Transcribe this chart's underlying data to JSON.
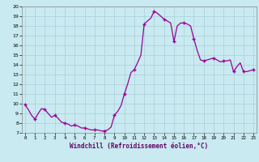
{
  "title": "",
  "xlabel": "Windchill (Refroidissement éolien,°C)",
  "ylabel": "",
  "bg_color": "#c8eaf0",
  "grid_color": "#b0d4dc",
  "line_color": "#990099",
  "marker_color": "#990099",
  "ylim": [
    7,
    20
  ],
  "xlim": [
    -0.3,
    23.3
  ],
  "yticks": [
    7,
    8,
    9,
    10,
    11,
    12,
    13,
    14,
    15,
    16,
    17,
    18,
    19,
    20
  ],
  "xticks": [
    0,
    1,
    2,
    3,
    4,
    5,
    6,
    7,
    8,
    9,
    10,
    11,
    12,
    13,
    14,
    15,
    16,
    17,
    18,
    19,
    20,
    21,
    22,
    23
  ],
  "x": [
    0,
    0.33,
    0.67,
    1,
    1.33,
    1.67,
    2,
    2.33,
    2.67,
    3,
    3.33,
    3.67,
    4,
    4.33,
    4.67,
    5,
    5.33,
    5.67,
    6,
    6.33,
    6.67,
    7,
    7.33,
    7.67,
    8,
    8.33,
    8.67,
    9,
    9.33,
    9.67,
    10,
    10.33,
    10.67,
    11,
    11.33,
    11.67,
    12,
    12.33,
    12.67,
    13,
    13.33,
    13.67,
    14,
    14.33,
    14.67,
    15,
    15.33,
    15.67,
    16,
    16.33,
    16.67,
    17,
    17.33,
    17.67,
    18,
    18.33,
    18.67,
    19,
    19.33,
    19.67,
    20,
    20.33,
    20.67,
    21,
    21.33,
    21.67,
    22,
    22.33,
    22.67,
    23
  ],
  "y": [
    9.9,
    9.4,
    8.8,
    8.4,
    9.0,
    9.5,
    9.4,
    9.0,
    8.6,
    8.8,
    8.5,
    8.1,
    8.0,
    7.9,
    7.7,
    7.8,
    7.7,
    7.5,
    7.5,
    7.4,
    7.3,
    7.3,
    7.3,
    7.2,
    7.2,
    7.3,
    7.6,
    8.8,
    9.2,
    9.8,
    11.0,
    12.0,
    13.2,
    13.5,
    14.2,
    15.0,
    18.2,
    18.5,
    18.8,
    19.5,
    19.3,
    19.0,
    18.7,
    18.5,
    18.3,
    16.4,
    18.0,
    18.3,
    18.3,
    18.2,
    18.0,
    16.7,
    15.5,
    14.5,
    14.4,
    14.5,
    14.6,
    14.7,
    14.5,
    14.3,
    14.4,
    14.4,
    14.5,
    13.3,
    13.8,
    14.2,
    13.3,
    13.3,
    13.4,
    13.5
  ],
  "marker_x": [
    0,
    1,
    2,
    3,
    4,
    5,
    6,
    7,
    8,
    9,
    10,
    11,
    12,
    13,
    14,
    15,
    16,
    17,
    18,
    19,
    20,
    21,
    22,
    23
  ],
  "marker_y": [
    9.9,
    8.4,
    9.4,
    8.8,
    8.0,
    7.8,
    7.5,
    7.3,
    7.2,
    8.8,
    11.0,
    13.5,
    18.2,
    19.5,
    18.7,
    16.4,
    18.3,
    16.7,
    14.4,
    14.7,
    14.4,
    13.3,
    13.3,
    13.5
  ]
}
